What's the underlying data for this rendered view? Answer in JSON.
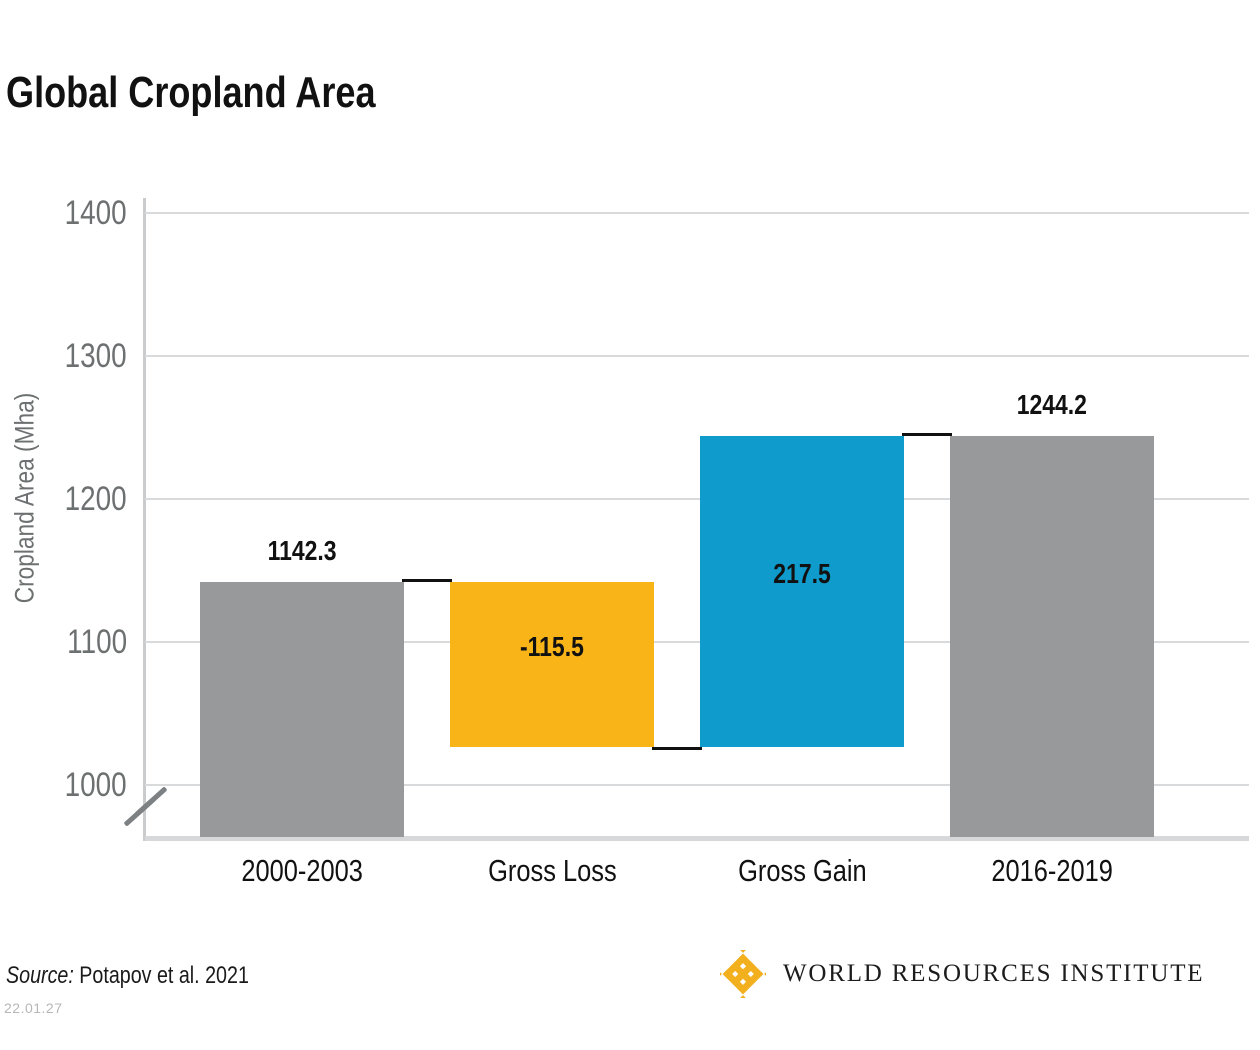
{
  "title": "Global Cropland Area",
  "chart_data": {
    "type": "bar",
    "subtype": "waterfall",
    "title": "Global Cropland Area",
    "ylabel": "Cropland Area (Mha)",
    "categories": [
      "2000-2003",
      "Gross Loss",
      "Gross Gain",
      "2016-2019"
    ],
    "bars": [
      {
        "category": "2000-2003",
        "kind": "total",
        "value": 1142.3,
        "label": "1142.3",
        "label_position": "above",
        "color": "#98999b"
      },
      {
        "category": "Gross Loss",
        "kind": "decrease",
        "value": -115.5,
        "label": "-115.5",
        "label_position": "inside",
        "color": "#f9b517"
      },
      {
        "category": "Gross Gain",
        "kind": "increase",
        "value": 217.5,
        "label": "217.5",
        "label_position": "inside",
        "color": "#0f9bcb"
      },
      {
        "category": "2016-2019",
        "kind": "total",
        "value": 1244.2,
        "label": "1244.2",
        "label_position": "above",
        "color": "#98999b"
      }
    ],
    "yticks": [
      1400,
      1300,
      1200,
      1100,
      1000
    ],
    "ylim": [
      1000,
      1400
    ],
    "units": "Mha",
    "grid": true,
    "axis_break": true,
    "legend": "none"
  },
  "footer": {
    "source_prefix": "Source:",
    "source_text": "Potapov et al. 2021",
    "date_code": "22.01.27",
    "logo_text": "WORLD RESOURCES INSTITUTE"
  },
  "colors": {
    "bar_gray": "#98999b",
    "loss_yellow": "#f9b517",
    "gain_blue": "#0f9bcb",
    "connector_black": "#111111",
    "axis_text_gray": "#6d7071",
    "gridline_gray": "#d9dadb",
    "axis_line_gray": "#c9cbcc",
    "baseline_gray": "#d6d8d9",
    "break_mark_gray": "#7d8183",
    "wri_yellow": "#f2b01e",
    "date_gray": "#b5b7b8"
  }
}
